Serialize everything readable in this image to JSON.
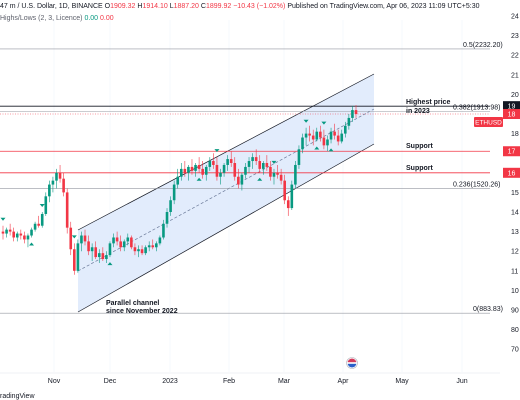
{
  "header": {
    "symbol_text": "m / U.S. Dollar, 1D, BINANCE",
    "o_label": "O",
    "o_value": "1909.32",
    "h_label": "H",
    "h_value": "1914.10",
    "l_label": "L",
    "l_value": "1887.20",
    "c_label": "C",
    "c_value": "1899.92",
    "change": "−10.43 (−1.02%)",
    "prefix": "47",
    "indicator": "Highs/Lows (2, 3, Licence)",
    "ind_v1": "0.00",
    "ind_v2": "0.00"
  },
  "caption": "Published on TradingView.com, Apr 06, 2023 11:09 UTC+5:30",
  "footer": "radingView",
  "colors": {
    "up": "#089981",
    "down": "#f23645",
    "channel_fill": "#dbe7fb",
    "channel_line": "#131722",
    "support": "#f23645",
    "fib": "#9598a1",
    "price_tag": "#f23645"
  },
  "chart_data": {
    "type": "candlestick",
    "x_ticks": [
      "Nov",
      "Dec",
      "2023",
      "Feb",
      "Mar",
      "Apr",
      "May",
      "Jun"
    ],
    "y_ticks_partial": [
      "24",
      "23",
      "22",
      "21",
      "20",
      "19",
      "18",
      "17",
      "16",
      "15",
      "14",
      "13",
      "12",
      "11",
      "10",
      "90",
      "80",
      "70"
    ],
    "y_range": [
      700,
      2400
    ],
    "fib_levels": [
      {
        "label": "0.5(2232.20)",
        "value": 2232.2
      },
      {
        "label": "0.382(1913.98)",
        "value": 1913.98
      },
      {
        "label": "0.236(1520.26)",
        "value": 1520.26
      },
      {
        "label": "0(883.83)",
        "value": 883.83
      }
    ],
    "support_levels": [
      {
        "label": "Support",
        "value": 1710,
        "tag": "17"
      },
      {
        "label": "Support",
        "value": 1600,
        "tag": "16"
      }
    ],
    "highest_price": {
      "label_line1": "Highest price",
      "label_line2": "in 2023",
      "value": 1940,
      "tag": "19"
    },
    "current_price": {
      "label": "ETHUSD",
      "value": 1900,
      "tag": "18"
    },
    "channel": {
      "label_line1": "Parallel channel",
      "label_line2": "since November 2022"
    },
    "candles": [
      {
        "o": 1300,
        "h": 1330,
        "l": 1260,
        "c": 1290
      },
      {
        "o": 1290,
        "h": 1320,
        "l": 1270,
        "c": 1310
      },
      {
        "o": 1310,
        "h": 1340,
        "l": 1280,
        "c": 1300
      },
      {
        "o": 1300,
        "h": 1320,
        "l": 1250,
        "c": 1270
      },
      {
        "o": 1270,
        "h": 1300,
        "l": 1250,
        "c": 1290
      },
      {
        "o": 1290,
        "h": 1310,
        "l": 1260,
        "c": 1280
      },
      {
        "o": 1280,
        "h": 1300,
        "l": 1240,
        "c": 1260
      },
      {
        "o": 1260,
        "h": 1290,
        "l": 1220,
        "c": 1280
      },
      {
        "o": 1280,
        "h": 1320,
        "l": 1270,
        "c": 1310
      },
      {
        "o": 1310,
        "h": 1350,
        "l": 1300,
        "c": 1340
      },
      {
        "o": 1340,
        "h": 1380,
        "l": 1320,
        "c": 1330
      },
      {
        "o": 1330,
        "h": 1400,
        "l": 1320,
        "c": 1390
      },
      {
        "o": 1390,
        "h": 1500,
        "l": 1380,
        "c": 1480
      },
      {
        "o": 1480,
        "h": 1560,
        "l": 1450,
        "c": 1540
      },
      {
        "o": 1540,
        "h": 1580,
        "l": 1500,
        "c": 1560
      },
      {
        "o": 1560,
        "h": 1620,
        "l": 1520,
        "c": 1600
      },
      {
        "o": 1600,
        "h": 1640,
        "l": 1550,
        "c": 1570
      },
      {
        "o": 1570,
        "h": 1600,
        "l": 1480,
        "c": 1500
      },
      {
        "o": 1500,
        "h": 1520,
        "l": 1290,
        "c": 1320
      },
      {
        "o": 1320,
        "h": 1350,
        "l": 1180,
        "c": 1210
      },
      {
        "o": 1210,
        "h": 1240,
        "l": 1080,
        "c": 1100
      },
      {
        "o": 1100,
        "h": 1260,
        "l": 1090,
        "c": 1240
      },
      {
        "o": 1240,
        "h": 1300,
        "l": 1200,
        "c": 1280
      },
      {
        "o": 1280,
        "h": 1310,
        "l": 1230,
        "c": 1250
      },
      {
        "o": 1250,
        "h": 1280,
        "l": 1180,
        "c": 1200
      },
      {
        "o": 1200,
        "h": 1240,
        "l": 1150,
        "c": 1220
      },
      {
        "o": 1220,
        "h": 1250,
        "l": 1160,
        "c": 1170
      },
      {
        "o": 1170,
        "h": 1210,
        "l": 1140,
        "c": 1190
      },
      {
        "o": 1190,
        "h": 1220,
        "l": 1150,
        "c": 1160
      },
      {
        "o": 1160,
        "h": 1200,
        "l": 1140,
        "c": 1180
      },
      {
        "o": 1180,
        "h": 1250,
        "l": 1170,
        "c": 1240
      },
      {
        "o": 1240,
        "h": 1290,
        "l": 1220,
        "c": 1270
      },
      {
        "o": 1270,
        "h": 1300,
        "l": 1230,
        "c": 1250
      },
      {
        "o": 1250,
        "h": 1280,
        "l": 1200,
        "c": 1220
      },
      {
        "o": 1220,
        "h": 1260,
        "l": 1200,
        "c": 1250
      },
      {
        "o": 1250,
        "h": 1290,
        "l": 1230,
        "c": 1270
      },
      {
        "o": 1270,
        "h": 1280,
        "l": 1210,
        "c": 1220
      },
      {
        "o": 1220,
        "h": 1240,
        "l": 1180,
        "c": 1200
      },
      {
        "o": 1200,
        "h": 1230,
        "l": 1170,
        "c": 1210
      },
      {
        "o": 1210,
        "h": 1230,
        "l": 1180,
        "c": 1190
      },
      {
        "o": 1190,
        "h": 1230,
        "l": 1180,
        "c": 1220
      },
      {
        "o": 1220,
        "h": 1250,
        "l": 1200,
        "c": 1230
      },
      {
        "o": 1230,
        "h": 1260,
        "l": 1210,
        "c": 1220
      },
      {
        "o": 1220,
        "h": 1250,
        "l": 1200,
        "c": 1240
      },
      {
        "o": 1240,
        "h": 1280,
        "l": 1230,
        "c": 1270
      },
      {
        "o": 1270,
        "h": 1360,
        "l": 1260,
        "c": 1340
      },
      {
        "o": 1340,
        "h": 1420,
        "l": 1320,
        "c": 1400
      },
      {
        "o": 1400,
        "h": 1480,
        "l": 1380,
        "c": 1460
      },
      {
        "o": 1460,
        "h": 1560,
        "l": 1440,
        "c": 1540
      },
      {
        "o": 1540,
        "h": 1620,
        "l": 1520,
        "c": 1580
      },
      {
        "o": 1580,
        "h": 1650,
        "l": 1560,
        "c": 1620
      },
      {
        "o": 1620,
        "h": 1660,
        "l": 1580,
        "c": 1600
      },
      {
        "o": 1600,
        "h": 1640,
        "l": 1560,
        "c": 1630
      },
      {
        "o": 1630,
        "h": 1670,
        "l": 1590,
        "c": 1610
      },
      {
        "o": 1610,
        "h": 1650,
        "l": 1580,
        "c": 1640
      },
      {
        "o": 1640,
        "h": 1680,
        "l": 1600,
        "c": 1620
      },
      {
        "o": 1620,
        "h": 1660,
        "l": 1570,
        "c": 1590
      },
      {
        "o": 1590,
        "h": 1640,
        "l": 1560,
        "c": 1630
      },
      {
        "o": 1630,
        "h": 1680,
        "l": 1610,
        "c": 1660
      },
      {
        "o": 1660,
        "h": 1700,
        "l": 1620,
        "c": 1640
      },
      {
        "o": 1640,
        "h": 1680,
        "l": 1560,
        "c": 1580
      },
      {
        "o": 1580,
        "h": 1620,
        "l": 1540,
        "c": 1600
      },
      {
        "o": 1600,
        "h": 1650,
        "l": 1580,
        "c": 1640
      },
      {
        "o": 1640,
        "h": 1690,
        "l": 1610,
        "c": 1670
      },
      {
        "o": 1670,
        "h": 1710,
        "l": 1630,
        "c": 1650
      },
      {
        "o": 1650,
        "h": 1680,
        "l": 1560,
        "c": 1580
      },
      {
        "o": 1580,
        "h": 1620,
        "l": 1520,
        "c": 1540
      },
      {
        "o": 1540,
        "h": 1600,
        "l": 1510,
        "c": 1590
      },
      {
        "o": 1590,
        "h": 1650,
        "l": 1570,
        "c": 1630
      },
      {
        "o": 1630,
        "h": 1680,
        "l": 1600,
        "c": 1660
      },
      {
        "o": 1660,
        "h": 1700,
        "l": 1620,
        "c": 1680
      },
      {
        "o": 1680,
        "h": 1720,
        "l": 1640,
        "c": 1660
      },
      {
        "o": 1660,
        "h": 1690,
        "l": 1600,
        "c": 1620
      },
      {
        "o": 1620,
        "h": 1660,
        "l": 1590,
        "c": 1650
      },
      {
        "o": 1650,
        "h": 1690,
        "l": 1610,
        "c": 1630
      },
      {
        "o": 1630,
        "h": 1660,
        "l": 1560,
        "c": 1580
      },
      {
        "o": 1580,
        "h": 1620,
        "l": 1540,
        "c": 1600
      },
      {
        "o": 1600,
        "h": 1640,
        "l": 1570,
        "c": 1590
      },
      {
        "o": 1590,
        "h": 1620,
        "l": 1540,
        "c": 1560
      },
      {
        "o": 1560,
        "h": 1590,
        "l": 1440,
        "c": 1460
      },
      {
        "o": 1460,
        "h": 1480,
        "l": 1380,
        "c": 1420
      },
      {
        "o": 1420,
        "h": 1560,
        "l": 1410,
        "c": 1540
      },
      {
        "o": 1540,
        "h": 1660,
        "l": 1520,
        "c": 1640
      },
      {
        "o": 1640,
        "h": 1740,
        "l": 1620,
        "c": 1720
      },
      {
        "o": 1720,
        "h": 1800,
        "l": 1700,
        "c": 1780
      },
      {
        "o": 1780,
        "h": 1830,
        "l": 1740,
        "c": 1800
      },
      {
        "o": 1800,
        "h": 1840,
        "l": 1760,
        "c": 1790
      },
      {
        "o": 1790,
        "h": 1820,
        "l": 1740,
        "c": 1770
      },
      {
        "o": 1770,
        "h": 1830,
        "l": 1760,
        "c": 1810
      },
      {
        "o": 1810,
        "h": 1840,
        "l": 1760,
        "c": 1780
      },
      {
        "o": 1780,
        "h": 1820,
        "l": 1720,
        "c": 1740
      },
      {
        "o": 1740,
        "h": 1790,
        "l": 1710,
        "c": 1770
      },
      {
        "o": 1770,
        "h": 1830,
        "l": 1750,
        "c": 1810
      },
      {
        "o": 1810,
        "h": 1850,
        "l": 1770,
        "c": 1790
      },
      {
        "o": 1790,
        "h": 1820,
        "l": 1740,
        "c": 1760
      },
      {
        "o": 1760,
        "h": 1820,
        "l": 1750,
        "c": 1800
      },
      {
        "o": 1800,
        "h": 1860,
        "l": 1780,
        "c": 1840
      },
      {
        "o": 1840,
        "h": 1900,
        "l": 1820,
        "c": 1880
      },
      {
        "o": 1880,
        "h": 1940,
        "l": 1860,
        "c": 1920
      },
      {
        "o": 1920,
        "h": 1945,
        "l": 1880,
        "c": 1900
      }
    ],
    "up_markers": [
      8,
      30,
      55,
      72,
      88,
      92
    ],
    "down_markers": [
      0,
      11,
      20,
      60,
      76,
      85,
      90
    ]
  }
}
